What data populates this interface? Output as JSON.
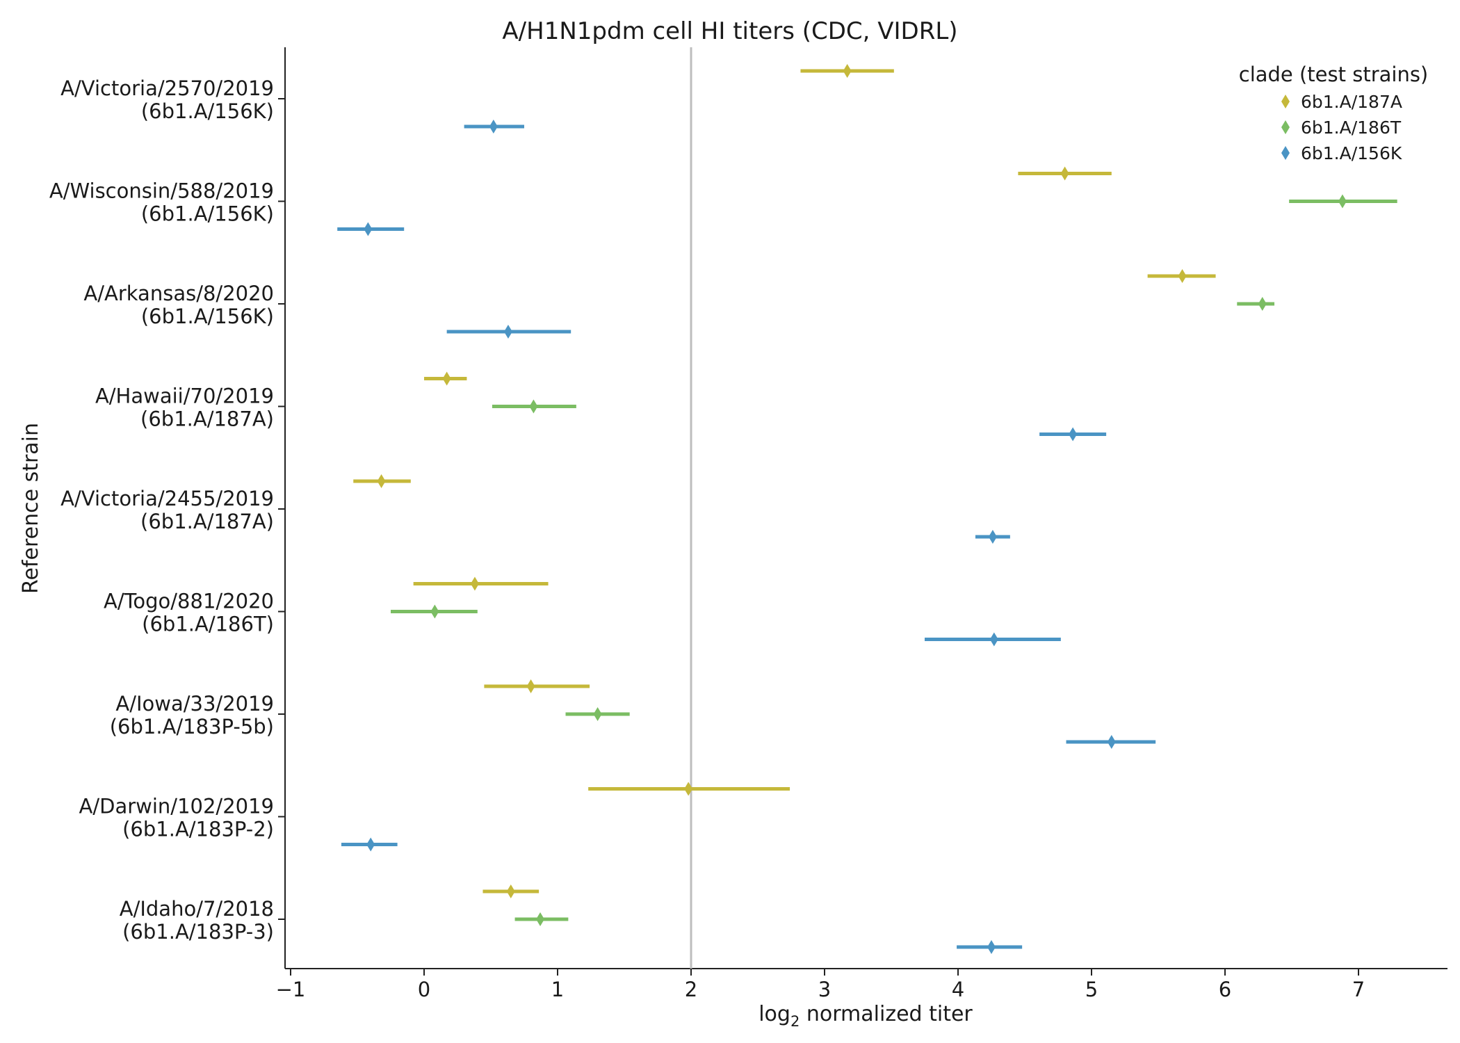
{
  "chart_data": {
    "type": "scatter",
    "title": "A/H1N1pdm cell HI titers (CDC, VIDRL)",
    "xlabel_main": "log",
    "xlabel_sub": "2",
    "xlabel_rest": " normalized titer",
    "ylabel": "Reference strain",
    "xlim": [
      -1.05,
      7.7
    ],
    "x_ticks": [
      -1,
      0,
      1,
      2,
      3,
      4,
      5,
      6,
      7
    ],
    "x_tick_labels": [
      "−1",
      "0",
      "1",
      "2",
      "3",
      "4",
      "5",
      "6",
      "7"
    ],
    "reference_line_x": 2,
    "grid": false,
    "legend": {
      "title": "clade (test strains)",
      "placement": "top-right",
      "entries": [
        {
          "name": "6b1.A/187A",
          "color": "#c5b83a"
        },
        {
          "name": "6b1.A/186T",
          "color": "#7bbd63"
        },
        {
          "name": "6b1.A/156K",
          "color": "#4a94c4"
        }
      ]
    },
    "categories": [
      {
        "line1": "A/Victoria/2570/2019",
        "line2": "(6b1.A/156K)"
      },
      {
        "line1": "A/Wisconsin/588/2019",
        "line2": "(6b1.A/156K)"
      },
      {
        "line1": "A/Arkansas/8/2020",
        "line2": "(6b1.A/156K)"
      },
      {
        "line1": "A/Hawaii/70/2019",
        "line2": "(6b1.A/187A)"
      },
      {
        "line1": "A/Victoria/2455/2019",
        "line2": "(6b1.A/187A)"
      },
      {
        "line1": "A/Togo/881/2020",
        "line2": "(6b1.A/186T)"
      },
      {
        "line1": "A/Iowa/33/2019",
        "line2": "(6b1.A/183P-5b)"
      },
      {
        "line1": "A/Darwin/102/2019",
        "line2": "(6b1.A/183P-2)"
      },
      {
        "line1": "A/Idaho/7/2018",
        "line2": "(6b1.A/183P-3)"
      }
    ],
    "series": [
      {
        "name": "6b1.A/187A",
        "color": "#c5b83a",
        "points": [
          {
            "category": 0,
            "value": 3.17,
            "low": 2.82,
            "high": 3.52
          },
          {
            "category": 1,
            "value": 4.8,
            "low": 4.45,
            "high": 5.15
          },
          {
            "category": 2,
            "value": 5.68,
            "low": 5.42,
            "high": 5.93
          },
          {
            "category": 3,
            "value": 0.17,
            "low": 0.0,
            "high": 0.32
          },
          {
            "category": 4,
            "value": -0.32,
            "low": -0.53,
            "high": -0.1
          },
          {
            "category": 5,
            "value": 0.38,
            "low": -0.08,
            "high": 0.93
          },
          {
            "category": 6,
            "value": 0.8,
            "low": 0.45,
            "high": 1.24
          },
          {
            "category": 7,
            "value": 1.98,
            "low": 1.23,
            "high": 2.74
          },
          {
            "category": 8,
            "value": 0.65,
            "low": 0.44,
            "high": 0.86
          }
        ]
      },
      {
        "name": "6b1.A/186T",
        "color": "#7bbd63",
        "points": [
          {
            "category": 1,
            "value": 6.88,
            "low": 6.48,
            "high": 7.29
          },
          {
            "category": 2,
            "value": 6.28,
            "low": 6.09,
            "high": 6.37
          },
          {
            "category": 3,
            "value": 0.82,
            "low": 0.51,
            "high": 1.14
          },
          {
            "category": 5,
            "value": 0.08,
            "low": -0.25,
            "high": 0.4
          },
          {
            "category": 6,
            "value": 1.3,
            "low": 1.06,
            "high": 1.54
          },
          {
            "category": 8,
            "value": 0.87,
            "low": 0.68,
            "high": 1.08
          }
        ]
      },
      {
        "name": "6b1.A/156K",
        "color": "#4a94c4",
        "points": [
          {
            "category": 0,
            "value": 0.52,
            "low": 0.3,
            "high": 0.75
          },
          {
            "category": 1,
            "value": -0.42,
            "low": -0.65,
            "high": -0.15
          },
          {
            "category": 2,
            "value": 0.63,
            "low": 0.17,
            "high": 1.1
          },
          {
            "category": 3,
            "value": 4.86,
            "low": 4.61,
            "high": 5.11
          },
          {
            "category": 4,
            "value": 4.26,
            "low": 4.13,
            "high": 4.39
          },
          {
            "category": 5,
            "value": 4.27,
            "low": 3.75,
            "high": 4.77
          },
          {
            "category": 6,
            "value": 5.15,
            "low": 4.81,
            "high": 5.48
          },
          {
            "category": 7,
            "value": -0.4,
            "low": -0.62,
            "high": -0.2
          },
          {
            "category": 8,
            "value": 4.25,
            "low": 3.99,
            "high": 4.48
          }
        ]
      }
    ]
  }
}
